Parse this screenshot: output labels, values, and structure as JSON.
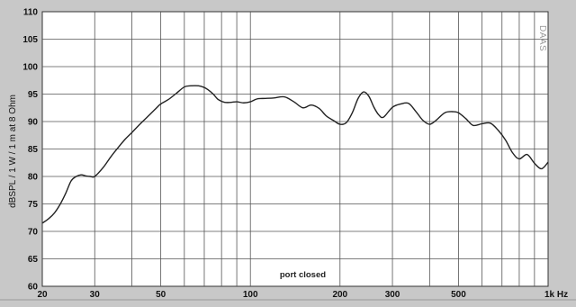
{
  "chart_data": {
    "type": "line",
    "title": "",
    "xlabel": "",
    "ylabel": "dBSPL / 1 W / 1 m at 8 Ohm",
    "x_scale": "log",
    "xlim": [
      20,
      1000
    ],
    "ylim": [
      60,
      110
    ],
    "grid": true,
    "x_ticks": [
      {
        "value": 20,
        "label": "20"
      },
      {
        "value": 30,
        "label": "30"
      },
      {
        "value": 50,
        "label": "50"
      },
      {
        "value": 100,
        "label": "100"
      },
      {
        "value": 200,
        "label": "200"
      },
      {
        "value": 300,
        "label": "300"
      },
      {
        "value": 500,
        "label": "500"
      },
      {
        "value": 1000,
        "label": "1k Hz"
      }
    ],
    "x_minor_grid": [
      40,
      60,
      70,
      80,
      90,
      400,
      600,
      700,
      800,
      900
    ],
    "y_ticks": [
      60,
      65,
      70,
      75,
      80,
      85,
      90,
      95,
      100,
      105,
      110
    ],
    "annotations": [
      {
        "text": "port closed",
        "x": 150,
        "y": 62
      }
    ],
    "watermark": "DAAS",
    "series": [
      {
        "color": "#222222",
        "x": [
          20,
          21,
          22,
          23,
          24,
          25,
          26,
          27,
          28,
          29,
          30,
          32,
          34,
          36,
          38,
          40,
          42,
          45,
          48,
          50,
          53,
          56,
          60,
          63,
          67,
          70,
          72,
          75,
          78,
          82,
          86,
          90,
          95,
          100,
          105,
          110,
          120,
          130,
          140,
          150,
          160,
          170,
          180,
          190,
          200,
          210,
          220,
          230,
          240,
          250,
          260,
          270,
          280,
          300,
          320,
          340,
          360,
          380,
          400,
          420,
          450,
          480,
          500,
          530,
          560,
          600,
          640,
          680,
          720,
          760,
          800,
          850,
          900,
          950,
          1000
        ],
        "y": [
          71.5,
          72.3,
          73.4,
          75.0,
          77.0,
          79.2,
          80.0,
          80.3,
          80.1,
          80.0,
          80.0,
          81.6,
          83.6,
          85.3,
          86.8,
          88.0,
          89.2,
          90.8,
          92.3,
          93.2,
          94.0,
          95.0,
          96.3,
          96.5,
          96.5,
          96.2,
          95.8,
          95.0,
          94.0,
          93.5,
          93.5,
          93.6,
          93.4,
          93.6,
          94.1,
          94.2,
          94.3,
          94.5,
          93.6,
          92.5,
          93.0,
          92.4,
          91.0,
          90.2,
          89.5,
          89.8,
          91.6,
          94.2,
          95.4,
          94.6,
          92.6,
          91.2,
          90.8,
          92.6,
          93.2,
          93.3,
          91.8,
          90.2,
          89.5,
          90.2,
          91.6,
          91.8,
          91.6,
          90.5,
          89.3,
          89.6,
          89.7,
          88.4,
          86.6,
          84.3,
          83.2,
          84.0,
          82.4,
          81.4,
          82.6
        ]
      }
    ]
  }
}
